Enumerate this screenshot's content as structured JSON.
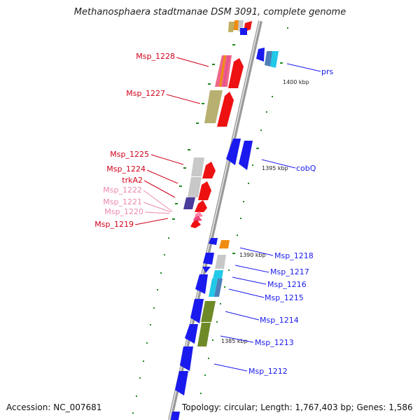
{
  "title": "Methanosphaera stadtmanae DSM 3091, complete genome",
  "footer": {
    "accession": "Accession: NC_007681",
    "topology": "Topology: circular; Length: 1,767,403 bp; Genes: 1,586"
  },
  "scale_labels": [
    "1400 kbp",
    "1395 kbp",
    "1390 kbp",
    "1385 kbp"
  ],
  "gene_labels_left": [
    "Msp_1228",
    "Msp_1227",
    "Msp_1225",
    "Msp_1224",
    "trkA2",
    "Msp_1222",
    "Msp_1221",
    "Msp_1220",
    "Msp_1219"
  ],
  "gene_labels_right": [
    "prs",
    "cobQ",
    "Msp_1218",
    "Msp_1217",
    "Msp_1216",
    "Msp_1215",
    "Msp_1214",
    "Msp_1213",
    "Msp_1212"
  ],
  "colors": {
    "forward_label": "#d0021b",
    "forward_label_faint": "#ee88b0",
    "reverse_label": "#1a1aee",
    "backbone": "#999999",
    "tick": "#1e8a1e",
    "gene_blue": "#1a1aee",
    "gene_red": "#ee1111",
    "gene_olive": "#b8b070",
    "gene_grey": "#c8c8c8",
    "gene_green": "#6e8a28",
    "gene_cyan": "#22c8e8",
    "gene_orange": "#f08c10",
    "gene_purple": "#4a3c9c",
    "gene_pink": "#ee4477"
  }
}
